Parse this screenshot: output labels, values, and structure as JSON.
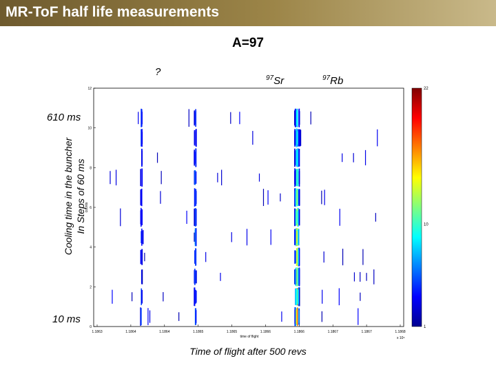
{
  "header": {
    "title": "MR-ToF half life measurements"
  },
  "subtitle": "A=97",
  "peak_labels": {
    "unknown": "?",
    "sr": "97",
    "sr_sym": "Sr",
    "rb": "97",
    "rb_sym": "Rb"
  },
  "axis_labels": {
    "y_line1": "Cooling time in the buncher",
    "y_line2": "In Steps of 60 ms",
    "x": "Time of flight  after 500 revs",
    "y_top": "610 ms",
    "y_bottom": "10 ms",
    "inner_x": "time of flight",
    "inner_y": "counts",
    "exponent": "x 10⁶"
  },
  "chart_data": {
    "type": "heatmap",
    "title": "A=97",
    "xlabel": "Time of flight  after 500 revs",
    "ylabel": "Cooling time in the buncher In Steps of 60 ms",
    "x_ticks": [
      "1.1863",
      "1.1864",
      "1.1864",
      "1.1865",
      "1.1865",
      "1.1866",
      "1.1866",
      "1.1867",
      "1.1867",
      "1.1868"
    ],
    "y_ticks": [
      "0",
      "2",
      "4",
      "6",
      "8",
      "10",
      "12"
    ],
    "xlim": [
      1.18632,
      1.18678
    ],
    "ylim": [
      0,
      12
    ],
    "colorbar": {
      "min": 1,
      "max": 22,
      "ticks": [
        "1",
        "10",
        "22"
      ],
      "colormap": "jet"
    },
    "peaks": [
      {
        "label": "?",
        "tof": 1.18639
      },
      {
        "label": "97Sr",
        "tof": 1.18647
      },
      {
        "label": "97Rb",
        "tof": 1.186621
      }
    ]
  }
}
